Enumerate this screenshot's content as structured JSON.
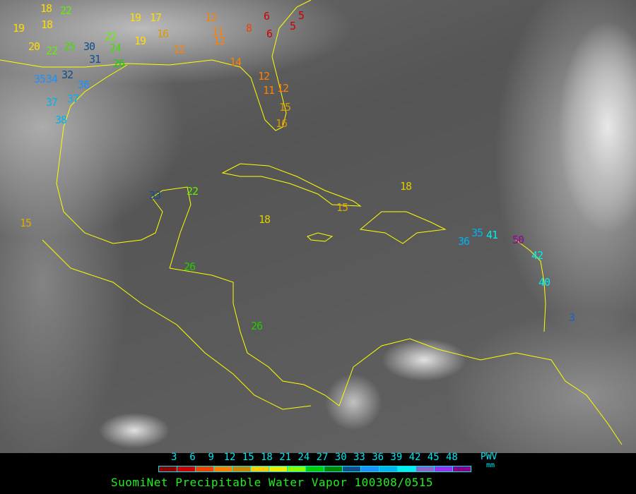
{
  "legend": {
    "ticks": [
      "3",
      "6",
      "9",
      "12",
      "15",
      "18",
      "21",
      "24",
      "27",
      "30",
      "33",
      "36",
      "39",
      "42",
      "45",
      "48"
    ],
    "swatch_colors": [
      "#8b0000",
      "#cc0000",
      "#ee4400",
      "#ff8000",
      "#cc8800",
      "#ffcc00",
      "#eeee00",
      "#88ff00",
      "#00cc00",
      "#008800",
      "#104e8b",
      "#1e90ff",
      "#00b2ee",
      "#00eeee",
      "#8866cc",
      "#9932ee",
      "#880088"
    ],
    "unit_label": "PWV",
    "unit": "mm"
  },
  "caption": "SuomiNet Precipitable Water Vapor 100308/0515",
  "colors": {
    "coastline": "#ffff00",
    "legend_text": "#00e5ee",
    "caption": "#22ee22"
  },
  "stations": [
    {
      "v": "18",
      "c": "#ffdd00"
    },
    {
      "v": "22",
      "c": "#66ee00"
    },
    {
      "v": "19",
      "c": "#ffdd00"
    },
    {
      "v": "18",
      "c": "#ffdd00"
    },
    {
      "v": "19",
      "c": "#ffdd00"
    },
    {
      "v": "17",
      "c": "#ffdd00"
    },
    {
      "v": "16",
      "c": "#dd9900"
    },
    {
      "v": "19",
      "c": "#ffdd00"
    },
    {
      "v": "20",
      "c": "#ffdd00"
    },
    {
      "v": "22",
      "c": "#66ee00"
    },
    {
      "v": "25",
      "c": "#44dd00"
    },
    {
      "v": "30",
      "c": "#104e8b"
    },
    {
      "v": "31",
      "c": "#104e8b"
    },
    {
      "v": "22",
      "c": "#66ee00"
    },
    {
      "v": "24",
      "c": "#44dd00"
    },
    {
      "v": "26",
      "c": "#22cc00"
    },
    {
      "v": "35",
      "c": "#1e90ff"
    },
    {
      "v": "34",
      "c": "#1e90ff"
    },
    {
      "v": "32",
      "c": "#104e8b"
    },
    {
      "v": "36",
      "c": "#1e90ff"
    },
    {
      "v": "37",
      "c": "#00b2ee"
    },
    {
      "v": "37",
      "c": "#00b2ee"
    },
    {
      "v": "38",
      "c": "#00b2ee"
    },
    {
      "v": "12",
      "c": "#ff8000"
    },
    {
      "v": "11",
      "c": "#ff8000"
    },
    {
      "v": "12",
      "c": "#ff8000"
    },
    {
      "v": "8",
      "c": "#ee4400"
    },
    {
      "v": "6",
      "c": "#cc0000"
    },
    {
      "v": "6",
      "c": "#cc0000"
    },
    {
      "v": "5",
      "c": "#cc0000"
    },
    {
      "v": "5",
      "c": "#cc0000"
    },
    {
      "v": "12",
      "c": "#ff8000"
    },
    {
      "v": "14",
      "c": "#ff8000"
    },
    {
      "v": "12",
      "c": "#ff8000"
    },
    {
      "v": "11",
      "c": "#ff8000"
    },
    {
      "v": "12",
      "c": "#ff8000"
    },
    {
      "v": "15",
      "c": "#dd9900"
    },
    {
      "v": "16",
      "c": "#dd9900"
    },
    {
      "v": "15",
      "c": "#ddaa00"
    },
    {
      "v": "18",
      "c": "#ddcc00"
    },
    {
      "v": "15",
      "c": "#ddaa00"
    },
    {
      "v": "18",
      "c": "#ddcc00"
    },
    {
      "v": "33",
      "c": "#104e8b"
    },
    {
      "v": "22",
      "c": "#66ee00"
    },
    {
      "v": "26",
      "c": "#22cc00"
    },
    {
      "v": "26",
      "c": "#22cc00"
    },
    {
      "v": "36",
      "c": "#00b2ee"
    },
    {
      "v": "35",
      "c": "#00b2ee"
    },
    {
      "v": "41",
      "c": "#00eeee"
    },
    {
      "v": "50",
      "c": "#990099"
    },
    {
      "v": "42",
      "c": "#00eeee"
    },
    {
      "v": "40",
      "c": "#00eeee"
    },
    {
      "v": "3",
      "c": "#1e60cc"
    }
  ]
}
